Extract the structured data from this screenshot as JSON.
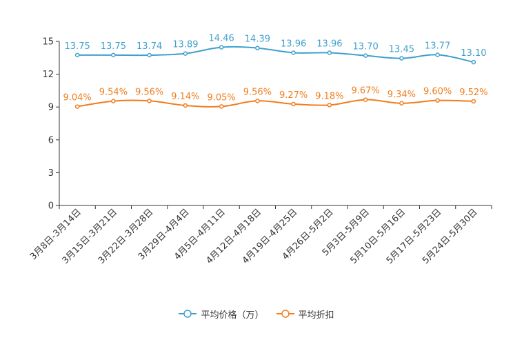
{
  "chart_data": {
    "type": "line",
    "title": "",
    "xlabel": "",
    "ylabel": "",
    "ylim": [
      0,
      15
    ],
    "yticks": [
      0,
      3,
      6,
      9,
      12,
      15
    ],
    "categories": [
      "3月8日-3月14日",
      "3月15日-3月21日",
      "3月22日-3月28日",
      "3月29日-4月4日",
      "4月5日-4月11日",
      "4月12日-4月18日",
      "4月19日-4月25日",
      "4月26日-5月2日",
      "5月3日-5月9日",
      "5月10日-5月16日",
      "5月17日-5月23日",
      "5月24日-5月30日"
    ],
    "series": [
      {
        "name": "平均价格（万）",
        "color": "#3fa0cd",
        "values": [
          13.75,
          13.75,
          13.74,
          13.89,
          14.46,
          14.39,
          13.96,
          13.96,
          13.7,
          13.45,
          13.77,
          13.1
        ],
        "labels": [
          "13.75",
          "13.75",
          "13.74",
          "13.89",
          "14.46",
          "14.39",
          "13.96",
          "13.96",
          "13.70",
          "13.45",
          "13.77",
          "13.10"
        ]
      },
      {
        "name": "平均折扣",
        "color": "#f07d1e",
        "values": [
          9.04,
          9.54,
          9.56,
          9.14,
          9.05,
          9.56,
          9.27,
          9.18,
          9.67,
          9.34,
          9.6,
          9.52
        ],
        "labels": [
          "9.04%",
          "9.54%",
          "9.56%",
          "9.14%",
          "9.05%",
          "9.56%",
          "9.27%",
          "9.18%",
          "9.67%",
          "9.34%",
          "9.60%",
          "9.52%"
        ]
      }
    ],
    "legend": "bottom"
  }
}
